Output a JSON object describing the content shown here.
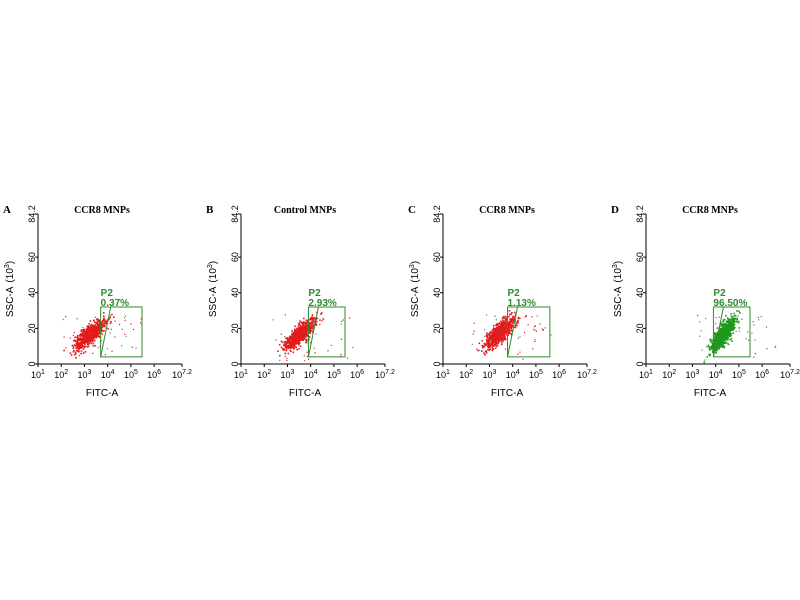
{
  "figure": {
    "background": "#ffffff"
  },
  "colors": {
    "negative_cells": "#e21b1b",
    "positive_cells": "#1d9a1d",
    "gate": "#2e8b2e",
    "axis": "#000000"
  },
  "chart_data": [
    {
      "type": "scatter",
      "letter": "A",
      "title": "CCR8 MNPs",
      "xlabel": "FITC-A",
      "ylabel": "SSC-A",
      "ylabel_unit": "(10",
      "ylabel_unit_exp": "3",
      "x_scale": "log",
      "xlim": [
        10,
        15848932
      ],
      "ylim": [
        0,
        84.2
      ],
      "xticks": [
        {
          "value": 10,
          "base": "10",
          "exp": "1"
        },
        {
          "value": 100,
          "base": "10",
          "exp": "2"
        },
        {
          "value": 1000,
          "base": "10",
          "exp": "3"
        },
        {
          "value": 10000,
          "base": "10",
          "exp": "4"
        },
        {
          "value": 100000,
          "base": "10",
          "exp": "5"
        },
        {
          "value": 1000000,
          "base": "10",
          "exp": "6"
        },
        {
          "value": 15848932,
          "base": "10",
          "exp": "7.2"
        }
      ],
      "yticks": [
        "0",
        "20",
        "40",
        "60",
        "84.2"
      ],
      "population": {
        "color": "negative",
        "center_fitc": 1600,
        "center_ssc": 17,
        "log_spread": 0.32,
        "ssc_spread": 4.5
      },
      "gate": {
        "name": "P2",
        "percent": "0.37%",
        "fitc_bounds": [
          5000,
          300000
        ],
        "ssc_bounds": [
          4,
          32
        ]
      }
    },
    {
      "type": "scatter",
      "letter": "B",
      "title": "Control MNPs",
      "xlabel": "FITC-A",
      "ylabel": "SSC-A",
      "ylabel_unit": "(10",
      "ylabel_unit_exp": "3",
      "x_scale": "log",
      "xlim": [
        10,
        15848932
      ],
      "ylim": [
        0,
        84.2
      ],
      "xticks": [
        {
          "value": 10,
          "base": "10",
          "exp": "1"
        },
        {
          "value": 100,
          "base": "10",
          "exp": "2"
        },
        {
          "value": 1000,
          "base": "10",
          "exp": "3"
        },
        {
          "value": 10000,
          "base": "10",
          "exp": "4"
        },
        {
          "value": 100000,
          "base": "10",
          "exp": "5"
        },
        {
          "value": 1000000,
          "base": "10",
          "exp": "6"
        },
        {
          "value": 15848932,
          "base": "10",
          "exp": "7.2"
        }
      ],
      "yticks": [
        "0",
        "20",
        "40",
        "60",
        "84.2"
      ],
      "population": {
        "color": "negative",
        "center_fitc": 3200,
        "center_ssc": 17,
        "log_spread": 0.3,
        "ssc_spread": 4.5
      },
      "gate": {
        "name": "P2",
        "percent": "2.93%",
        "fitc_bounds": [
          8000,
          300000
        ],
        "ssc_bounds": [
          4,
          32
        ]
      }
    },
    {
      "type": "scatter",
      "letter": "C",
      "title": "CCR8 MNPs",
      "xlabel": "FITC-A",
      "ylabel": "SSC-A",
      "ylabel_unit": "(10",
      "ylabel_unit_exp": "3",
      "x_scale": "log",
      "xlim": [
        10,
        15848932
      ],
      "ylim": [
        0,
        84.2
      ],
      "xticks": [
        {
          "value": 10,
          "base": "10",
          "exp": "1"
        },
        {
          "value": 100,
          "base": "10",
          "exp": "2"
        },
        {
          "value": 1000,
          "base": "10",
          "exp": "3"
        },
        {
          "value": 10000,
          "base": "10",
          "exp": "4"
        },
        {
          "value": 100000,
          "base": "10",
          "exp": "5"
        },
        {
          "value": 1000000,
          "base": "10",
          "exp": "6"
        },
        {
          "value": 15848932,
          "base": "10",
          "exp": "7.2"
        }
      ],
      "yticks": [
        "0",
        "20",
        "40",
        "60",
        "84.2"
      ],
      "population": {
        "color": "negative",
        "center_fitc": 2600,
        "center_ssc": 18,
        "log_spread": 0.32,
        "ssc_spread": 4.5
      },
      "gate": {
        "name": "P2",
        "percent": "1.13%",
        "fitc_bounds": [
          6000,
          400000
        ],
        "ssc_bounds": [
          4,
          32
        ]
      }
    },
    {
      "type": "scatter",
      "letter": "D",
      "title": "CCR8 MNPs",
      "xlabel": "FITC-A",
      "ylabel": "SSC-A",
      "ylabel_unit": "(10",
      "ylabel_unit_exp": "3",
      "x_scale": "log",
      "xlim": [
        10,
        15848932
      ],
      "ylim": [
        0,
        84.2
      ],
      "xticks": [
        {
          "value": 10,
          "base": "10",
          "exp": "1"
        },
        {
          "value": 100,
          "base": "10",
          "exp": "2"
        },
        {
          "value": 1000,
          "base": "10",
          "exp": "3"
        },
        {
          "value": 10000,
          "base": "10",
          "exp": "4"
        },
        {
          "value": 100000,
          "base": "10",
          "exp": "5"
        },
        {
          "value": 1000000,
          "base": "10",
          "exp": "6"
        },
        {
          "value": 15848932,
          "base": "10",
          "exp": "7.2"
        }
      ],
      "yticks": [
        "0",
        "20",
        "40",
        "60",
        "84.2"
      ],
      "population": {
        "color": "positive",
        "center_fitc": 20000,
        "center_ssc": 17,
        "log_spread": 0.25,
        "ssc_spread": 5
      },
      "gate": {
        "name": "P2",
        "percent": "96.50%",
        "fitc_bounds": [
          8000,
          300000
        ],
        "ssc_bounds": [
          4,
          32
        ]
      }
    }
  ]
}
